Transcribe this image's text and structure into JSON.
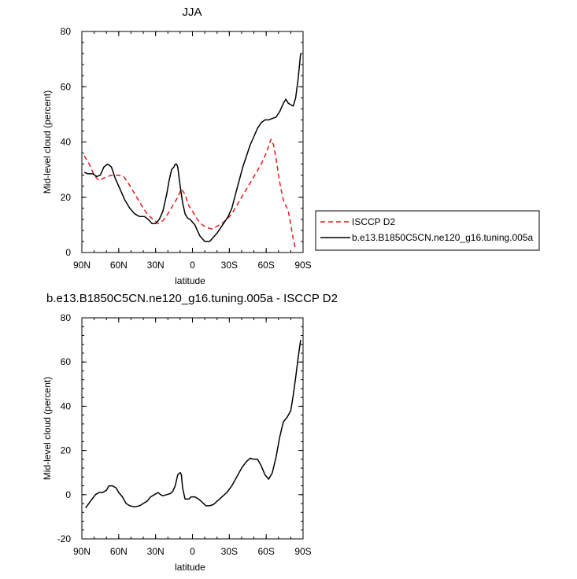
{
  "chart_data": [
    {
      "type": "line",
      "title": "JJA",
      "xlabel": "latitude",
      "ylabel": "Mid-level cloud (percent)",
      "xlim": [
        90,
        -90
      ],
      "ylim": [
        0,
        80
      ],
      "xticks": [
        {
          "value": 90,
          "label": "90N"
        },
        {
          "value": 60,
          "label": "60N"
        },
        {
          "value": 30,
          "label": "30N"
        },
        {
          "value": 0,
          "label": "0"
        },
        {
          "value": -30,
          "label": "30S"
        },
        {
          "value": -60,
          "label": "60S"
        },
        {
          "value": -90,
          "label": "90S"
        }
      ],
      "yticks": [
        0,
        20,
        40,
        60,
        80
      ],
      "legend": {
        "placement": "right"
      },
      "series": [
        {
          "name": "ISCCP D2",
          "color": "#e41a1c",
          "dash": "dashed",
          "points": [
            [
              88,
              35
            ],
            [
              84,
              32
            ],
            [
              80,
              28
            ],
            [
              76,
              26
            ],
            [
              72,
              27
            ],
            [
              66,
              28
            ],
            [
              60,
              28
            ],
            [
              56,
              27.5
            ],
            [
              52,
              25
            ],
            [
              48,
              22
            ],
            [
              44,
              19
            ],
            [
              40,
              16
            ],
            [
              36,
              13.5
            ],
            [
              32,
              12
            ],
            [
              28,
              10.5
            ],
            [
              24,
              11.5
            ],
            [
              20,
              14
            ],
            [
              16,
              17
            ],
            [
              12,
              20
            ],
            [
              9,
              23
            ],
            [
              6,
              21
            ],
            [
              3,
              17
            ],
            [
              0,
              15
            ],
            [
              -4,
              12
            ],
            [
              -8,
              10
            ],
            [
              -12,
              9
            ],
            [
              -16,
              8.5
            ],
            [
              -20,
              9.5
            ],
            [
              -24,
              10.5
            ],
            [
              -28,
              12
            ],
            [
              -32,
              14
            ],
            [
              -36,
              17
            ],
            [
              -40,
              20
            ],
            [
              -44,
              23
            ],
            [
              -48,
              26
            ],
            [
              -52,
              29
            ],
            [
              -56,
              32
            ],
            [
              -60,
              36
            ],
            [
              -63,
              40
            ],
            [
              -64,
              41
            ],
            [
              -66,
              39
            ],
            [
              -68,
              34
            ],
            [
              -70,
              28
            ],
            [
              -72,
              23
            ],
            [
              -74,
              19
            ],
            [
              -76,
              17
            ],
            [
              -78,
              15
            ],
            [
              -80,
              10
            ],
            [
              -82,
              5
            ],
            [
              -84,
              1
            ]
          ]
        },
        {
          "name": "b.e13.B1850C5CN.ne120_g16.tuning.005a",
          "color": "#000000",
          "dash": "solid",
          "points": [
            [
              88,
              29
            ],
            [
              85,
              28.5
            ],
            [
              81,
              28.5
            ],
            [
              78,
              27.5
            ],
            [
              75,
              28
            ],
            [
              72,
              31
            ],
            [
              69,
              32
            ],
            [
              66,
              31
            ],
            [
              63,
              27
            ],
            [
              59,
              23
            ],
            [
              55,
              19
            ],
            [
              51,
              16
            ],
            [
              47,
              14
            ],
            [
              43,
              13
            ],
            [
              39,
              13
            ],
            [
              36,
              12
            ],
            [
              33,
              10.5
            ],
            [
              30,
              10.5
            ],
            [
              27,
              12
            ],
            [
              24,
              15
            ],
            [
              21,
              21
            ],
            [
              19,
              26
            ],
            [
              17,
              30
            ],
            [
              15,
              31
            ],
            [
              14,
              32
            ],
            [
              13,
              32
            ],
            [
              12,
              31
            ],
            [
              10,
              24
            ],
            [
              8,
              18
            ],
            [
              6,
              14
            ],
            [
              4,
              12.5
            ],
            [
              2,
              12
            ],
            [
              0,
              11
            ],
            [
              -2,
              10
            ],
            [
              -4,
              8
            ],
            [
              -6,
              6
            ],
            [
              -8,
              5
            ],
            [
              -10,
              4
            ],
            [
              -12,
              4
            ],
            [
              -14,
              4
            ],
            [
              -16,
              5
            ],
            [
              -18,
              6
            ],
            [
              -20,
              7
            ],
            [
              -23,
              9
            ],
            [
              -26,
              11
            ],
            [
              -29,
              13
            ],
            [
              -32,
              16
            ],
            [
              -35,
              21
            ],
            [
              -38,
              26
            ],
            [
              -41,
              31
            ],
            [
              -44,
              35
            ],
            [
              -47,
              39
            ],
            [
              -50,
              42
            ],
            [
              -53,
              45
            ],
            [
              -56,
              47
            ],
            [
              -59,
              48
            ],
            [
              -62,
              48
            ],
            [
              -65,
              48.5
            ],
            [
              -68,
              49
            ],
            [
              -71,
              51
            ],
            [
              -74,
              54
            ],
            [
              -76,
              55.5
            ],
            [
              -78,
              54
            ],
            [
              -80,
              53.5
            ],
            [
              -82,
              53
            ],
            [
              -84,
              56
            ],
            [
              -86,
              63
            ],
            [
              -88,
              72
            ]
          ]
        }
      ]
    },
    {
      "type": "line",
      "title": "b.e13.B1850C5CN.ne120_g16.tuning.005a - ISCCP D2",
      "xlabel": "latitude",
      "ylabel": "Mid-level cloud (percent)",
      "xlim": [
        90,
        -90
      ],
      "ylim": [
        -20,
        80
      ],
      "xticks": [
        {
          "value": 90,
          "label": "90N"
        },
        {
          "value": 60,
          "label": "60N"
        },
        {
          "value": 30,
          "label": "30N"
        },
        {
          "value": 0,
          "label": "0"
        },
        {
          "value": -30,
          "label": "30S"
        },
        {
          "value": -60,
          "label": "60S"
        },
        {
          "value": -90,
          "label": "90S"
        }
      ],
      "yticks": [
        -20,
        0,
        20,
        40,
        60,
        80
      ],
      "series": [
        {
          "color": "#000000",
          "dash": "solid",
          "points": [
            [
              87,
              -6
            ],
            [
              83,
              -3
            ],
            [
              79,
              0
            ],
            [
              76,
              1
            ],
            [
              73,
              1
            ],
            [
              70,
              2
            ],
            [
              68,
              4
            ],
            [
              65,
              4
            ],
            [
              62,
              3
            ],
            [
              60,
              1
            ],
            [
              57,
              -1
            ],
            [
              54,
              -4
            ],
            [
              51,
              -5
            ],
            [
              47,
              -5.5
            ],
            [
              43,
              -5
            ],
            [
              40,
              -4
            ],
            [
              37,
              -3
            ],
            [
              34,
              -1
            ],
            [
              31,
              0
            ],
            [
              28,
              1
            ],
            [
              26,
              0
            ],
            [
              24,
              -0.5
            ],
            [
              21,
              0
            ],
            [
              18,
              0.5
            ],
            [
              16,
              1.5
            ],
            [
              14,
              4
            ],
            [
              12,
              9
            ],
            [
              10,
              10
            ],
            [
              9,
              9
            ],
            [
              8,
              3
            ],
            [
              6,
              -2
            ],
            [
              3,
              -2
            ],
            [
              1,
              -1
            ],
            [
              -2,
              -1
            ],
            [
              -5,
              -2
            ],
            [
              -8,
              -3.5
            ],
            [
              -11,
              -5
            ],
            [
              -14,
              -5
            ],
            [
              -17,
              -4.5
            ],
            [
              -20,
              -3
            ],
            [
              -24,
              -1
            ],
            [
              -28,
              1
            ],
            [
              -32,
              4
            ],
            [
              -36,
              8
            ],
            [
              -40,
              12
            ],
            [
              -44,
              15
            ],
            [
              -47,
              16.5
            ],
            [
              -50,
              16
            ],
            [
              -53,
              16
            ],
            [
              -56,
              13
            ],
            [
              -59,
              9
            ],
            [
              -62,
              7
            ],
            [
              -65,
              10
            ],
            [
              -68,
              17
            ],
            [
              -71,
              26
            ],
            [
              -74,
              33
            ],
            [
              -77,
              35
            ],
            [
              -80,
              38
            ],
            [
              -82,
              45
            ],
            [
              -84,
              53
            ],
            [
              -86,
              62
            ],
            [
              -88,
              70
            ]
          ]
        }
      ]
    }
  ]
}
